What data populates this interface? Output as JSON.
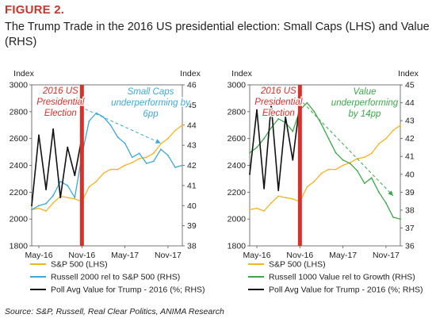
{
  "figure": {
    "label": "FIGURE 2.",
    "title": "The Trump Trade in the 2016 US presidential election: Small Caps (LHS) and Value (RHS)",
    "source": "Source: S&P, Russell, Real Clear Politics, ANIMA Research"
  },
  "colors": {
    "sp500": "#f5b324",
    "russell2000_rel": "#3ca9d9",
    "russell1000_value_rel": "#3aa84a",
    "poll": "#111111",
    "election_bar": "#d9302a",
    "annotation_red": "#d9302a",
    "annotation_blue": "#3ca9d9",
    "annotation_green": "#3aa84a"
  },
  "chart_data": [
    {
      "type": "line",
      "x_tick_labels": [
        "May-16",
        "Nov-16",
        "May-17",
        "Nov-17"
      ],
      "x_range": [
        "2016-04",
        "2018-01"
      ],
      "left_axis": {
        "label": "Index",
        "ticks": [
          "1800",
          "2000",
          "2200",
          "2400",
          "2600",
          "2800",
          "3000"
        ],
        "ylim": [
          1800,
          3000
        ]
      },
      "right_axis": {
        "label": "Index",
        "ticks": [
          "38",
          "39",
          "40",
          "41",
          "42",
          "43",
          "44",
          "45",
          "46"
        ],
        "ylim": [
          38,
          46
        ]
      },
      "event_marker": {
        "date": "2016-11",
        "label": "2016 US Presidential Election"
      },
      "annotation": "Small Caps underperforming by 6pp",
      "trend_arrow": {
        "from": [
          "2016-11",
          44.8
        ],
        "to": [
          "2017-10",
          43.1
        ]
      },
      "series": [
        {
          "name": "S&P 500 (LHS)",
          "axis": "left",
          "color_key": "sp500",
          "x": [
            "2016-04",
            "2016-05",
            "2016-06",
            "2016-07",
            "2016-08",
            "2016-09",
            "2016-10",
            "2016-11",
            "2016-12",
            "2017-01",
            "2017-02",
            "2017-03",
            "2017-04",
            "2017-05",
            "2017-06",
            "2017-07",
            "2017-08",
            "2017-09",
            "2017-10",
            "2017-11",
            "2017-12",
            "2018-01"
          ],
          "values": [
            2070,
            2080,
            2060,
            2120,
            2170,
            2160,
            2150,
            2130,
            2240,
            2280,
            2340,
            2370,
            2370,
            2400,
            2420,
            2450,
            2460,
            2490,
            2560,
            2600,
            2660,
            2700
          ]
        },
        {
          "name": "Russell 2000 rel to S&P 500 (RHS)",
          "axis": "right",
          "color_key": "russell2000_rel",
          "x": [
            "2016-04",
            "2016-05",
            "2016-06",
            "2016-07",
            "2016-08",
            "2016-09",
            "2016-10",
            "2016-11",
            "2016-12",
            "2017-01",
            "2017-02",
            "2017-03",
            "2017-04",
            "2017-05",
            "2017-06",
            "2017-07",
            "2017-08",
            "2017-09",
            "2017-10",
            "2017-11",
            "2017-12",
            "2018-01"
          ],
          "values": [
            39.8,
            40.0,
            40.1,
            40.5,
            41.2,
            41.0,
            40.4,
            42.5,
            44.2,
            44.6,
            44.4,
            44.0,
            43.4,
            43.1,
            42.4,
            42.6,
            42.1,
            42.2,
            42.8,
            42.5,
            41.9,
            42.0
          ]
        },
        {
          "name": "Poll Avg Value for Trump - 2016 (%; RHS)",
          "axis": "right",
          "color_key": "poll",
          "x": [
            "2016-04",
            "2016-05",
            "2016-06",
            "2016-07",
            "2016-08",
            "2016-09",
            "2016-10",
            "2016-11"
          ],
          "values": [
            40.0,
            43.5,
            40.8,
            43.8,
            40.4,
            42.9,
            41.5,
            43.4
          ]
        }
      ]
    },
    {
      "type": "line",
      "x_tick_labels": [
        "May-16",
        "Nov-16",
        "May-17",
        "Nov-17"
      ],
      "x_range": [
        "2016-04",
        "2018-01"
      ],
      "left_axis": {
        "label": "Index",
        "ticks": [
          "1800",
          "2000",
          "2200",
          "2400",
          "2600",
          "2800",
          "3000"
        ],
        "ylim": [
          1800,
          3000
        ]
      },
      "right_axis": {
        "label": "Index",
        "ticks": [
          "36",
          "37",
          "38",
          "39",
          "40",
          "41",
          "42",
          "43",
          "44",
          "45"
        ],
        "ylim": [
          36,
          45
        ]
      },
      "event_marker": {
        "date": "2016-11",
        "label": "2016 US Presidential Election"
      },
      "annotation": "Value underperforming by 14pp",
      "trend_arrow": {
        "from": [
          "2016-11",
          44.0
        ],
        "to": [
          "2017-12",
          38.8
        ]
      },
      "series": [
        {
          "name": "S&P 500 (LHS)",
          "axis": "left",
          "color_key": "sp500",
          "x": [
            "2016-04",
            "2016-05",
            "2016-06",
            "2016-07",
            "2016-08",
            "2016-09",
            "2016-10",
            "2016-11",
            "2016-12",
            "2017-01",
            "2017-02",
            "2017-03",
            "2017-04",
            "2017-05",
            "2017-06",
            "2017-07",
            "2017-08",
            "2017-09",
            "2017-10",
            "2017-11",
            "2017-12",
            "2018-01"
          ],
          "values": [
            2070,
            2080,
            2060,
            2120,
            2170,
            2160,
            2150,
            2130,
            2240,
            2280,
            2340,
            2370,
            2370,
            2400,
            2420,
            2450,
            2460,
            2490,
            2560,
            2600,
            2660,
            2700
          ]
        },
        {
          "name": "Russell 1000 Value rel to Growth (RHS)",
          "axis": "right",
          "color_key": "russell1000_value_rel",
          "x": [
            "2016-04",
            "2016-05",
            "2016-06",
            "2016-07",
            "2016-08",
            "2016-09",
            "2016-10",
            "2016-11",
            "2016-12",
            "2017-01",
            "2017-02",
            "2017-03",
            "2017-04",
            "2017-05",
            "2017-06",
            "2017-07",
            "2017-08",
            "2017-09",
            "2017-10",
            "2017-11",
            "2017-12",
            "2018-01"
          ],
          "values": [
            41.2,
            41.5,
            42.0,
            42.6,
            43.1,
            42.9,
            42.4,
            43.6,
            44.0,
            43.5,
            42.8,
            42.0,
            41.2,
            40.8,
            40.6,
            40.2,
            39.5,
            39.8,
            39.0,
            38.4,
            37.6,
            37.5
          ]
        },
        {
          "name": "Poll Avg Value for Trump - 2016 (%; RHS)",
          "axis": "right",
          "color_key": "poll",
          "x": [
            "2016-04",
            "2016-05",
            "2016-06",
            "2016-07",
            "2016-08",
            "2016-09",
            "2016-10",
            "2016-11"
          ],
          "values": [
            40.0,
            43.6,
            39.2,
            43.9,
            39.1,
            43.2,
            40.8,
            44.0
          ]
        }
      ]
    }
  ]
}
